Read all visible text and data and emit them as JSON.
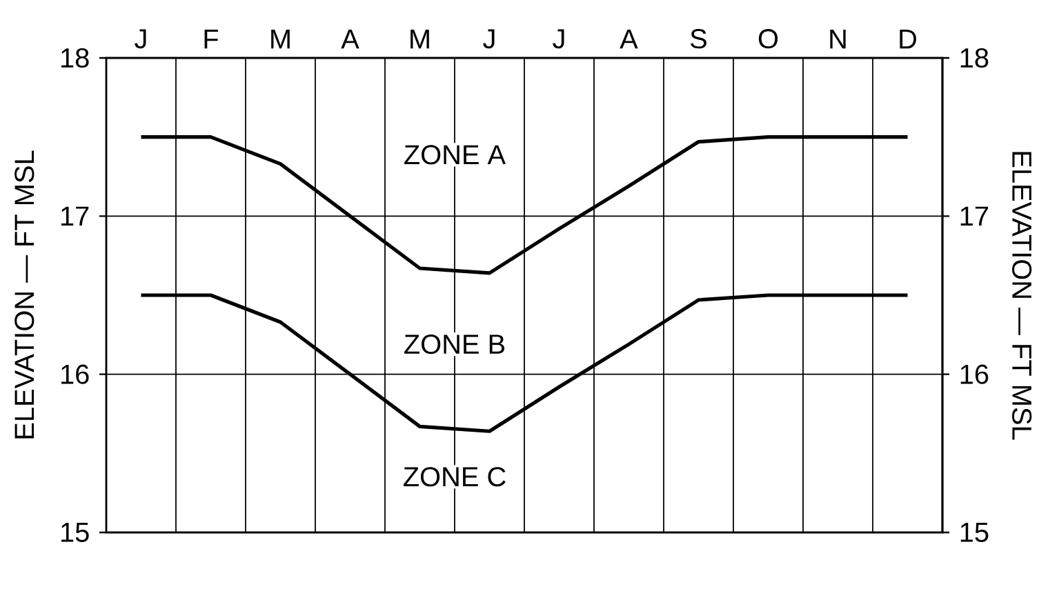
{
  "chart_data": {
    "type": "line",
    "ylabel": "ELEVATION — FT MSL",
    "y2label": "ELEVATION — FT MSL",
    "categories": [
      "J",
      "F",
      "M",
      "A",
      "M",
      "J",
      "J",
      "A",
      "S",
      "O",
      "N",
      "D"
    ],
    "ylim": [
      15,
      18
    ],
    "y2lim": [
      15,
      18
    ],
    "yticks": [
      15,
      16,
      17,
      18
    ],
    "y2ticks": [
      15,
      16,
      17,
      18
    ],
    "grid": true,
    "marker": "none",
    "line_style": "solid",
    "series": [
      {
        "color": "#000000",
        "values": [
          17.5,
          17.5,
          17.33,
          17.0,
          16.67,
          16.64,
          16.92,
          17.19,
          17.47,
          17.5,
          17.5,
          17.5
        ]
      },
      {
        "color": "#000000",
        "values": [
          16.5,
          16.5,
          16.33,
          16.0,
          15.67,
          15.64,
          15.92,
          16.19,
          16.47,
          16.5,
          16.5,
          16.5
        ]
      }
    ],
    "annotations": [
      "ZONE A",
      "ZONE B",
      "ZONE C"
    ]
  }
}
